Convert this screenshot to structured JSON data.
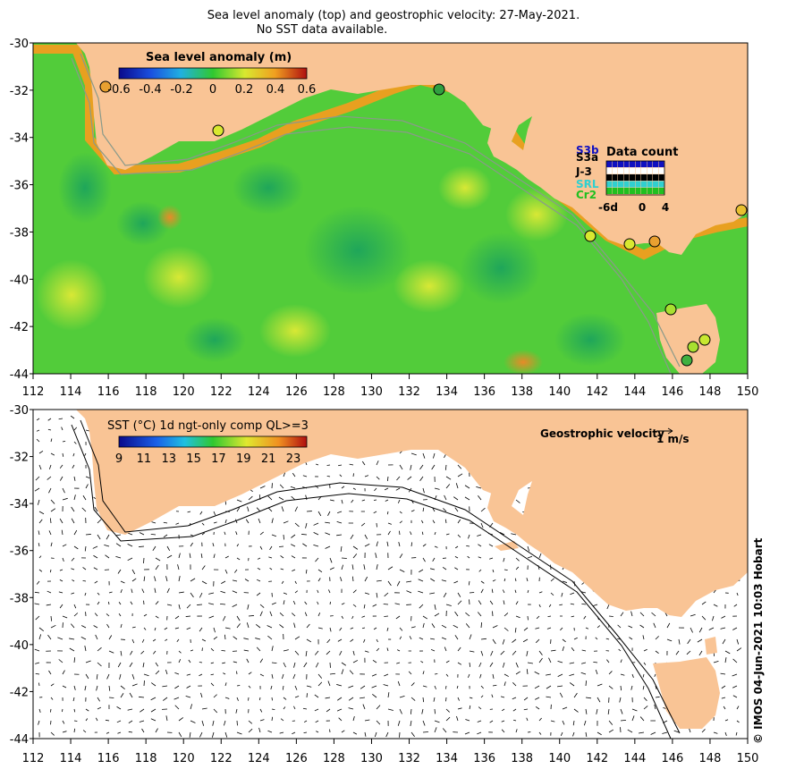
{
  "title_line1": "Sea level anomaly (top) and geostrophic velocity: 27-May-2021.",
  "title_line2": "No SST data available.",
  "top_panel": {
    "colorbar_title": "Sea level anomaly (m)",
    "colorbar_ticks": [
      "-0.6",
      "-0.4",
      "-0.2",
      "0",
      "0.2",
      "0.4",
      "0.6"
    ],
    "data_count_title": "Data count",
    "satellites": [
      {
        "name": "S3b",
        "color": "#1010c0"
      },
      {
        "name": "S3a",
        "color": "#000000"
      },
      {
        "name": "J-3",
        "color": "#000000"
      },
      {
        "name": "SRL",
        "color": "#30d0d0"
      },
      {
        "name": "Cr2",
        "color": "#20c020"
      }
    ],
    "data_count_axis": [
      "-6d",
      "0",
      "4"
    ]
  },
  "bottom_panel": {
    "colorbar_title": "SST (°C) 1d ngt-only comp QL>=3",
    "colorbar_ticks": [
      "9",
      "11",
      "13",
      "15",
      "17",
      "19",
      "21",
      "23"
    ],
    "velocity_label": "Geostrophic velocity",
    "velocity_scale": "1 m/s"
  },
  "axes": {
    "x_ticks": [
      "112",
      "114",
      "116",
      "118",
      "120",
      "122",
      "124",
      "126",
      "128",
      "130",
      "132",
      "134",
      "136",
      "138",
      "140",
      "142",
      "144",
      "146",
      "148",
      "150"
    ],
    "y_ticks": [
      "-30",
      "-32",
      "-34",
      "-36",
      "-38",
      "-40",
      "-42",
      "-44"
    ]
  },
  "credit": "© IMOS 04-Jun-2021 10:03 Hobart",
  "colors": {
    "land": "#f9c495",
    "ocean_low": "#2ec53a",
    "ocean_high": "#cde831",
    "frame": "#000000"
  }
}
